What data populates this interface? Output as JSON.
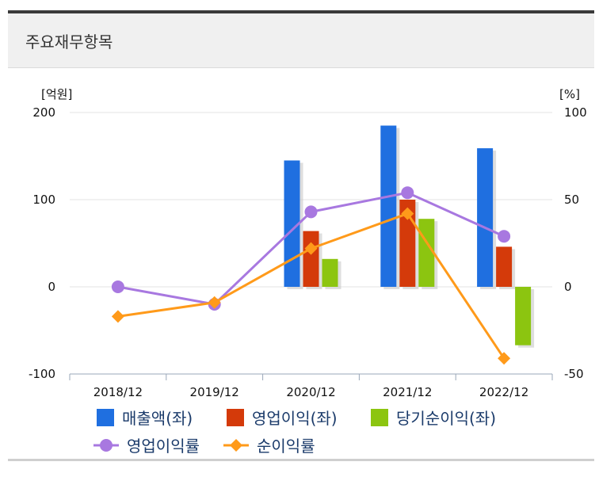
{
  "panel": {
    "title": "주요재무항목"
  },
  "chart_data": {
    "type": "bar+line",
    "categories": [
      "2018/12",
      "2019/12",
      "2020/12",
      "2021/12",
      "2022/12"
    ],
    "y_left": {
      "unit": "[억원]",
      "ylim": [
        -100,
        200
      ],
      "ticks": [
        200,
        100,
        0,
        -100
      ]
    },
    "y_right": {
      "unit": "[%]",
      "ylim": [
        -50,
        100
      ],
      "ticks": [
        100,
        50,
        0,
        -50
      ]
    },
    "grid": true,
    "bar_series": [
      {
        "name": "매출액(좌)",
        "color": "#1f6fe0",
        "values": [
          null,
          null,
          145,
          185,
          159
        ]
      },
      {
        "name": "영업이익(좌)",
        "color": "#d43a0a",
        "values": [
          null,
          null,
          64,
          100,
          46
        ]
      },
      {
        "name": "당기순이익(좌)",
        "color": "#8cc510",
        "values": [
          null,
          null,
          32,
          78,
          -67
        ]
      }
    ],
    "line_series": [
      {
        "name": "영업이익률",
        "color": "#a878e0",
        "marker": "circle",
        "values": [
          0,
          -10,
          43,
          54,
          29
        ]
      },
      {
        "name": "순이익률",
        "color": "#ff9a1a",
        "marker": "diamond",
        "values": [
          -17,
          -9,
          22,
          42,
          -41
        ]
      }
    ],
    "legend_position": "bottom"
  }
}
